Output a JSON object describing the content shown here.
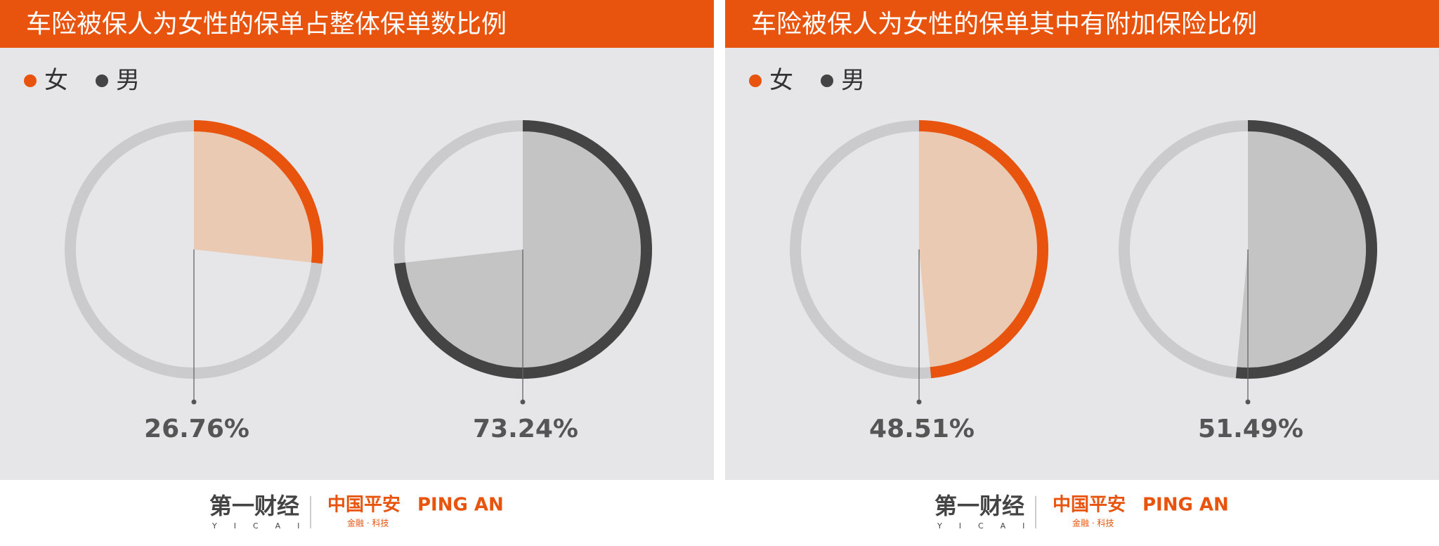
{
  "chart_data": [
    {
      "type": "pie",
      "title": "车险被保人为女性的保单占整体保单数比例",
      "series": [
        {
          "name": "女",
          "color": "#e8540e",
          "values": [
            26.76
          ],
          "value_labels": [
            "26.76%"
          ]
        },
        {
          "name": "男",
          "color": "#444444",
          "values": [
            73.24
          ],
          "value_labels": [
            "73.24%"
          ]
        }
      ]
    },
    {
      "type": "pie",
      "title": "车险被保人为女性的保单其中有附加保险比例",
      "series": [
        {
          "name": "女",
          "color": "#e8540e",
          "values": [
            48.51
          ],
          "value_labels": [
            "48.51%"
          ]
        },
        {
          "name": "男",
          "color": "#444444",
          "values": [
            51.49
          ],
          "value_labels": [
            "51.49%"
          ]
        }
      ]
    }
  ],
  "footer": {
    "yicai": "第一财经",
    "yicai_en": "YICAI",
    "pingan": "中国平安",
    "pingan_en": "PING AN",
    "tagline": "金融 · 科技"
  }
}
